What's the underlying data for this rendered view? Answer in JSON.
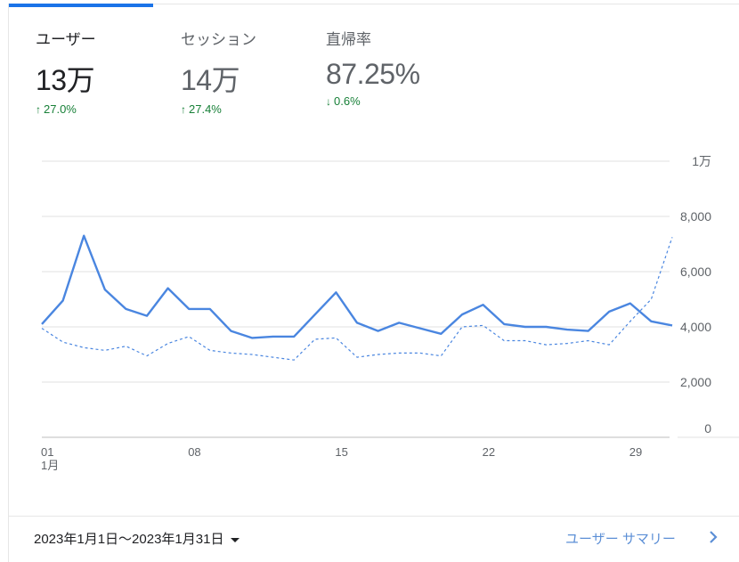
{
  "metrics": [
    {
      "label": "ユーザー",
      "value": "13万",
      "change": "27.0%",
      "direction": "up"
    },
    {
      "label": "セッション",
      "value": "14万",
      "change": "27.4%",
      "direction": "up"
    },
    {
      "label": "直帰率",
      "value": "87.25%",
      "change": "0.6%",
      "direction": "down"
    }
  ],
  "colors": {
    "accent": "#1a73e8",
    "line_primary": "#4a86e0",
    "positive": "#188038",
    "link": "#5c8fd6"
  },
  "footer": {
    "date_range": "2023年1月1日～2023年1月31日",
    "summary_link": "ユーザー サマリー"
  },
  "chart_data": {
    "type": "line",
    "x": [
      1,
      2,
      3,
      4,
      5,
      6,
      7,
      8,
      9,
      10,
      11,
      12,
      13,
      14,
      15,
      16,
      17,
      18,
      19,
      20,
      21,
      22,
      23,
      24,
      25,
      26,
      27,
      28,
      29,
      30,
      31
    ],
    "x_ticks": [
      {
        "day": 1,
        "label": "01",
        "sublabel": "1月"
      },
      {
        "day": 8,
        "label": "08"
      },
      {
        "day": 15,
        "label": "15"
      },
      {
        "day": 22,
        "label": "22"
      },
      {
        "day": 29,
        "label": "29"
      }
    ],
    "y_ticks": [
      {
        "value": 0,
        "label": "0"
      },
      {
        "value": 2000,
        "label": "2,000"
      },
      {
        "value": 4000,
        "label": "4,000"
      },
      {
        "value": 6000,
        "label": "6,000"
      },
      {
        "value": 8000,
        "label": "8,000"
      },
      {
        "value": 10000,
        "label": "1万"
      }
    ],
    "ylim": [
      0,
      10000
    ],
    "series": [
      {
        "style": "solid",
        "values": [
          4100,
          4950,
          7300,
          5350,
          4650,
          4400,
          5400,
          4650,
          4650,
          3850,
          3600,
          3650,
          3650,
          4450,
          5250,
          4150,
          3850,
          4150,
          3950,
          3750,
          4450,
          4800,
          4100,
          4000,
          4000,
          3900,
          3850,
          4550,
          4850,
          4200,
          4050
        ]
      },
      {
        "style": "dashed",
        "values": [
          3950,
          3450,
          3250,
          3150,
          3300,
          2950,
          3400,
          3650,
          3150,
          3050,
          3000,
          2900,
          2800,
          3550,
          3600,
          2900,
          3000,
          3050,
          3050,
          2950,
          4000,
          4050,
          3500,
          3500,
          3350,
          3400,
          3500,
          3350,
          4200,
          5000,
          7250
        ]
      }
    ]
  }
}
